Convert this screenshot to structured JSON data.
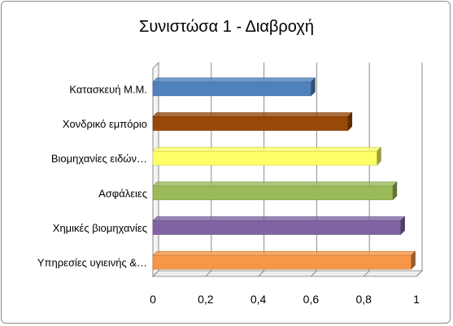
{
  "chart_data": {
    "type": "bar",
    "orientation": "horizontal",
    "title": "Συνιστώσα 1 - Διαβροχή",
    "categories": [
      "Κατασκευή Μ.Μ.",
      "Χονδρικό εμπόριο",
      "Βιομηχανίες ειδών…",
      "Ασφάλειες",
      "Χημικές βιομηχανίες",
      "Υπηρεσίες υγιεινής &…"
    ],
    "values": [
      0.6,
      0.74,
      0.85,
      0.91,
      0.94,
      0.98
    ],
    "colors": [
      "#4f81bd",
      "#984807",
      "#ffff66",
      "#9bbb59",
      "#8064a2",
      "#f79646"
    ],
    "xlim": [
      0,
      1
    ],
    "x_ticks": [
      "0",
      "0,2",
      "0,4",
      "0,6",
      "0,8",
      "1"
    ],
    "grid": true,
    "legend": "none",
    "xlabel": "",
    "ylabel": ""
  }
}
